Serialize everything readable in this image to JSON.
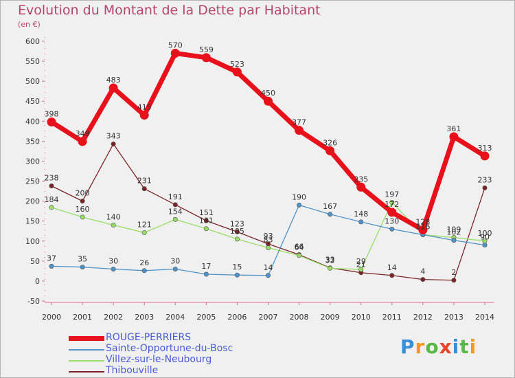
{
  "title": "Evolution du Montant de la Dette par Habitant",
  "subtitle": "(en €)",
  "logo": {
    "text": "Proxiti",
    "colors": [
      "#3a8fd9",
      "#f39a1c",
      "#59b947",
      "#e8452c",
      "#3a8fd9",
      "#59b947",
      "#f39a1c"
    ]
  },
  "chart_data": {
    "type": "line",
    "x": [
      "2000",
      "2001",
      "2002",
      "2003",
      "2004",
      "2005",
      "2006",
      "2007",
      "2008",
      "2009",
      "2010",
      "2011",
      "2012",
      "2013",
      "2014"
    ],
    "ylim": [
      -50,
      600
    ],
    "yticks": [
      "-50",
      "0",
      "50",
      "100",
      "150",
      "200",
      "250",
      "300",
      "350",
      "400",
      "450",
      "500",
      "550",
      "600"
    ],
    "grid": false,
    "legend_position": "bottom-left",
    "series": [
      {
        "name": "ROUGE-PERRIERS",
        "color": "#e8101a",
        "values": [
          398,
          349,
          483,
          415,
          570,
          559,
          523,
          450,
          377,
          326,
          235,
          172,
          128,
          361,
          313
        ],
        "labels": [
          "398",
          "349",
          "483",
          "415",
          "570",
          "559",
          "523",
          "450",
          "377",
          "326",
          "235",
          "172",
          "128",
          "361",
          "313"
        ]
      },
      {
        "name": "Sainte-Opportune-du-Bosc",
        "color": "#4f93c8",
        "values": [
          37,
          35,
          30,
          26,
          30,
          17,
          15,
          14,
          190,
          167,
          148,
          130,
          116,
          102,
          90
        ],
        "labels": [
          "37",
          "35",
          "30",
          "26",
          "30",
          "17",
          "15",
          "14",
          "190",
          "167",
          "148",
          "130",
          "116",
          "102",
          "90"
        ]
      },
      {
        "name": "Villez-sur-le-Neubourg",
        "color": "#99dd66",
        "values": [
          184,
          160,
          140,
          121,
          154,
          131,
          105,
          83,
          64,
          32,
          29,
          197,
          116,
          109,
          100
        ],
        "labels": [
          "184",
          "160",
          "140",
          "121",
          "154",
          "131",
          "105",
          "83",
          "64",
          "32",
          "29",
          "197",
          "116",
          "109",
          "100"
        ]
      },
      {
        "name": "Thibouville",
        "color": "#7b2428",
        "values": [
          238,
          200,
          343,
          231,
          191,
          151,
          123,
          93,
          66,
          33,
          21,
          14,
          4,
          2,
          233
        ],
        "labels": [
          "238",
          "200",
          "343",
          "231",
          "191",
          "151",
          "123",
          "93",
          "66",
          "33",
          "21",
          "14",
          "4",
          "2",
          "233"
        ]
      }
    ]
  }
}
